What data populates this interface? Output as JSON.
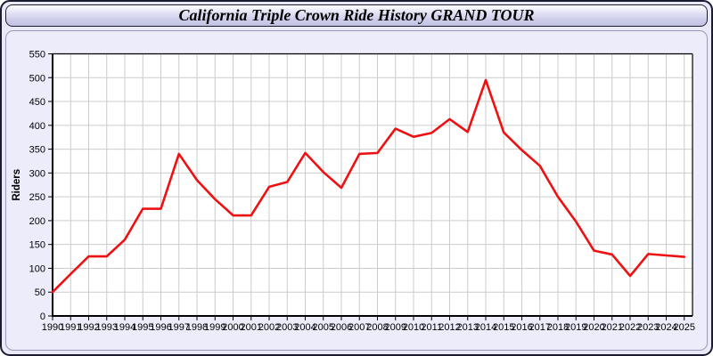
{
  "title": "California Triple Crown Ride History GRAND TOUR",
  "colors": {
    "line": "#ee1111",
    "grid": "#cccccc",
    "axis": "#000000",
    "plot_background": "#ffffff",
    "panel_background": "#ececfb",
    "frame_background": "#e9e9f8",
    "titlebar_gradient_top": "#ffffff",
    "titlebar_gradient_bottom": "#c2c2e3"
  },
  "chart_data": {
    "type": "line",
    "title": "California Triple Crown Ride History GRAND TOUR",
    "xlabel": "",
    "ylabel": "Riders",
    "ylim": [
      0,
      550
    ],
    "ytick_step": 50,
    "grid": true,
    "legend_position": "none",
    "x": [
      1990,
      1991,
      1992,
      1993,
      1994,
      1995,
      1996,
      1997,
      1998,
      1999,
      2000,
      2001,
      2002,
      2003,
      2004,
      2005,
      2006,
      2007,
      2008,
      2009,
      2010,
      2011,
      2012,
      2013,
      2014,
      2015,
      2016,
      2017,
      2018,
      2019,
      2020,
      2021,
      2022,
      2023,
      2024,
      2025
    ],
    "series": [
      {
        "name": "Riders",
        "color": "#ee1111",
        "values": [
          50,
          88,
          125,
          125,
          160,
          225,
          225,
          340,
          285,
          245,
          211,
          211,
          271,
          281,
          342,
          302,
          269,
          340,
          342,
          393,
          376,
          384,
          413,
          386,
          495,
          385,
          348,
          315,
          250,
          198,
          137,
          129,
          84,
          130,
          127,
          124
        ]
      }
    ]
  }
}
